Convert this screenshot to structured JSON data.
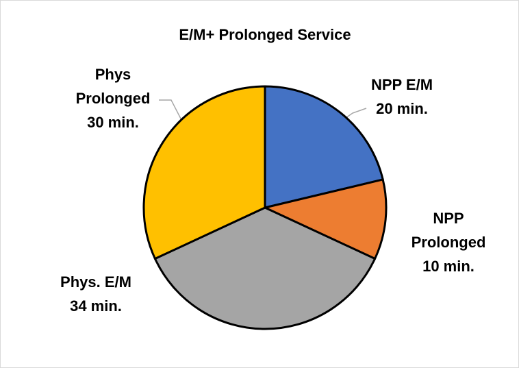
{
  "chart_data": {
    "type": "pie",
    "title": "E/M+ Prolonged Service",
    "categories": [
      "NPP E/M",
      "NPP Prolonged",
      "Phys. E/M",
      "Phys Prolonged"
    ],
    "values": [
      20,
      10,
      34,
      30
    ],
    "value_labels": [
      "20 min.",
      "10 min.",
      "34 min.",
      "30 min."
    ],
    "colors": [
      "#4472c4",
      "#ed7d31",
      "#a5a5a5",
      "#ffc000"
    ]
  }
}
